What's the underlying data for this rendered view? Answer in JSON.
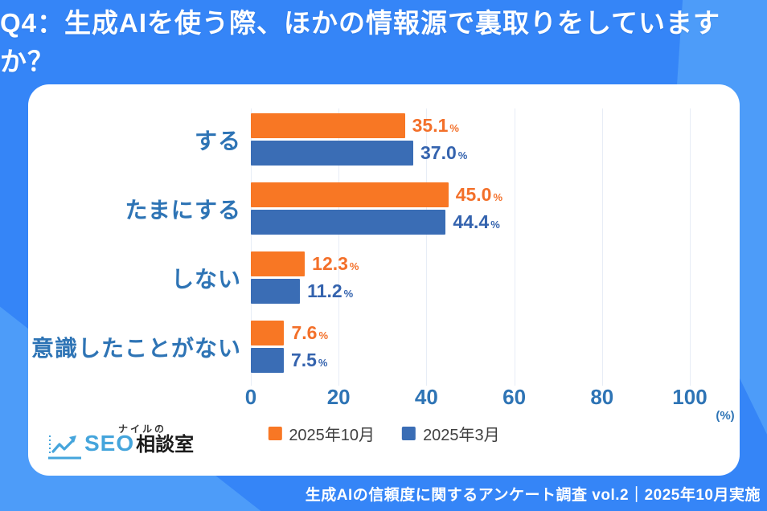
{
  "header": {
    "title": "Q4：生成AIを使う際、ほかの情報源で裏取りをしていますか？"
  },
  "chart_data": {
    "type": "bar",
    "orientation": "horizontal",
    "title": "Q4：生成AIを使う際、ほかの情報源で裏取りをしていますか？",
    "categories": [
      "する",
      "たまにする",
      "しない",
      "意識したことがない"
    ],
    "series": [
      {
        "name": "2025年10月",
        "color": "#F87724",
        "label_color": "#F3702A",
        "values": [
          35.1,
          45.0,
          12.3,
          7.6
        ]
      },
      {
        "name": "2025年3月",
        "color": "#3A6DB5",
        "label_color": "#3463AE",
        "values": [
          37.0,
          44.4,
          11.2,
          7.5
        ]
      }
    ],
    "value_suffix": "%",
    "xlim": [
      0,
      100
    ],
    "x_ticks": [
      0,
      20,
      40,
      60,
      80,
      100
    ],
    "x_unit_label": "(%)",
    "grid": true,
    "legend_position": "bottom",
    "category_label_color": "#2E74B5",
    "tick_label_color": "#2E74B5",
    "gridline_color": "#E7EDF6"
  },
  "logo": {
    "top_text": "ナイルの",
    "seo_text": "SEO",
    "rest_text": "相談室",
    "accent_color": "#45A5DC"
  },
  "footer": {
    "text": "生成AIの信頼度に関するアンケート調査 vol.2｜2025年10月実施"
  },
  "colors": {
    "background": "#3585F7",
    "background_accent": "#4D9CF9",
    "card": "#FFFFFF",
    "title_text": "#FFFFFF",
    "footer_text": "#FFFFFF"
  }
}
